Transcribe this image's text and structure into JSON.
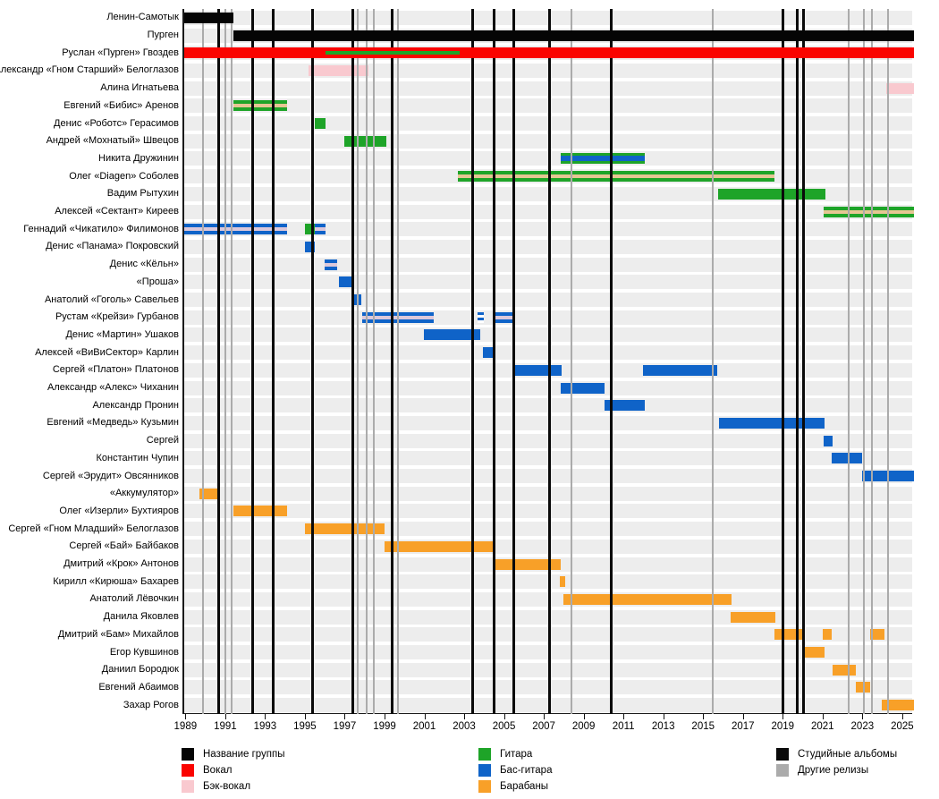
{
  "palette": {
    "band": "#050505",
    "vocals": "#fa0400",
    "backing": "#f9c9cf",
    "guitar": "#1ea428",
    "bass": "#0f63c8",
    "drums": "#f8a028",
    "stripe_tan": "#e6c693",
    "stripe_pink": "#dcc8da",
    "studio_line": "#0a0a0a",
    "other_line": "#ababab",
    "row_band": "#ededed"
  },
  "chart_data": {
    "type": "bar",
    "variant": "horizontal-timeline-gantt",
    "title": "",
    "xlim": [
      1988.85,
      2025.5
    ],
    "x_ticks": [
      1989,
      1991,
      1993,
      1995,
      1997,
      1999,
      2001,
      2003,
      2005,
      2007,
      2009,
      2011,
      2013,
      2015,
      2017,
      2019,
      2021,
      2023,
      2025
    ],
    "rows": [
      {
        "label": "Ленин-Самотык",
        "bars": [
          {
            "s": 1988.85,
            "e": 1991.3,
            "c": "band"
          }
        ]
      },
      {
        "label": "Пурген",
        "bars": [
          {
            "s": 1991.3,
            "e": 2025.5,
            "c": "band"
          }
        ]
      },
      {
        "label": "Руслан «Пурген» Гвоздев",
        "bars": [
          {
            "s": 1988.85,
            "e": 2025.5,
            "c": "vocals"
          },
          {
            "s": 1995.95,
            "e": 2002.7,
            "c": "guitar",
            "h": "thin"
          }
        ]
      },
      {
        "label": "Александр «Гном Старший» Белоглазов",
        "bars": [
          {
            "s": 1995.1,
            "e": 1998.1,
            "c": "backing"
          }
        ]
      },
      {
        "label": "Алина Игнатьева",
        "bars": [
          {
            "s": 2024.1,
            "e": 2025.5,
            "c": "backing"
          }
        ]
      },
      {
        "label": "Евгений «Бибис» Аренов",
        "bars": [
          {
            "s": 1991.3,
            "e": 1994.0,
            "c": "guitar"
          },
          {
            "s": 1991.3,
            "e": 1994.0,
            "c": "stripe_tan",
            "h": "thin"
          }
        ]
      },
      {
        "label": "Денис «Роботс» Герасимов",
        "bars": [
          {
            "s": 1995.4,
            "e": 1995.95,
            "c": "guitar"
          }
        ]
      },
      {
        "label": "Андрей «Мохнатый» Швецов",
        "bars": [
          {
            "s": 1996.9,
            "e": 1999.0,
            "c": "guitar"
          }
        ]
      },
      {
        "label": "Никита Дружинин",
        "bars": [
          {
            "s": 2007.75,
            "e": 2012.0,
            "c": "guitar"
          },
          {
            "s": 2007.75,
            "e": 2012.0,
            "c": "bass",
            "h": "mid"
          }
        ]
      },
      {
        "label": "Олег «Diagen» Соболев",
        "bars": [
          {
            "s": 2002.6,
            "e": 2018.5,
            "c": "guitar"
          },
          {
            "s": 2002.6,
            "e": 2018.5,
            "c": "stripe_tan",
            "h": "thin"
          }
        ]
      },
      {
        "label": "Вадим Рытухин",
        "bars": [
          {
            "s": 2015.65,
            "e": 2021.05,
            "c": "guitar"
          }
        ]
      },
      {
        "label": "Алексей «Сектант» Киреев",
        "bars": [
          {
            "s": 2020.95,
            "e": 2025.5,
            "c": "guitar"
          },
          {
            "s": 2020.95,
            "e": 2025.5,
            "c": "stripe_tan",
            "h": "thin"
          }
        ]
      },
      {
        "label": "Геннадий «Чикатило» Филимонов",
        "bars": [
          {
            "s": 1988.85,
            "e": 1994.0,
            "c": "bass"
          },
          {
            "s": 1988.85,
            "e": 1994.0,
            "c": "stripe_pink",
            "h": "thin"
          },
          {
            "s": 1994.9,
            "e": 1995.4,
            "c": "guitar"
          },
          {
            "s": 1995.4,
            "e": 1995.95,
            "c": "bass"
          },
          {
            "s": 1995.4,
            "e": 1995.95,
            "c": "stripe_pink",
            "h": "thin"
          }
        ]
      },
      {
        "label": "Денис «Панама» Покровский",
        "bars": [
          {
            "s": 1994.9,
            "e": 1995.4,
            "c": "bass"
          }
        ]
      },
      {
        "label": "Денис «Кёльн»",
        "bars": [
          {
            "s": 1995.9,
            "e": 1996.55,
            "c": "bass"
          },
          {
            "s": 1995.9,
            "e": 1996.55,
            "c": "stripe_pink",
            "h": "thin"
          }
        ]
      },
      {
        "label": "«Проша»",
        "bars": [
          {
            "s": 1996.6,
            "e": 1997.3,
            "c": "bass"
          }
        ]
      },
      {
        "label": "Анатолий «Гоголь» Савельев",
        "bars": [
          {
            "s": 1997.3,
            "e": 1997.75,
            "c": "bass"
          }
        ]
      },
      {
        "label": "Рустам «Крейзи» Гурбанов",
        "bars": [
          {
            "s": 1997.8,
            "e": 2001.4,
            "c": "bass"
          },
          {
            "s": 1997.8,
            "e": 2001.4,
            "c": "stripe_pink",
            "h": "thin"
          },
          {
            "s": 2003.6,
            "e": 2003.9,
            "c": "bass",
            "dotted": true
          },
          {
            "s": 2004.35,
            "e": 2005.4,
            "c": "bass"
          },
          {
            "s": 2004.35,
            "e": 2005.4,
            "c": "stripe_pink",
            "h": "thin"
          }
        ]
      },
      {
        "label": "Денис «Мартин» Ушаков",
        "bars": [
          {
            "s": 2000.9,
            "e": 2003.7,
            "c": "bass"
          }
        ]
      },
      {
        "label": "Алексей «ВиВиСектор» Карлин",
        "bars": [
          {
            "s": 2003.85,
            "e": 2004.4,
            "c": "bass"
          }
        ]
      },
      {
        "label": "Сергей «Платон» Платонов",
        "bars": [
          {
            "s": 2005.35,
            "e": 2007.8,
            "c": "bass"
          },
          {
            "s": 2011.9,
            "e": 2015.6,
            "c": "bass"
          }
        ]
      },
      {
        "label": "Александр «Алекс» Чиханин",
        "bars": [
          {
            "s": 2007.75,
            "e": 2009.95,
            "c": "bass"
          }
        ]
      },
      {
        "label": "Александр Пронин",
        "bars": [
          {
            "s": 2009.95,
            "e": 2012.0,
            "c": "bass"
          }
        ]
      },
      {
        "label": "Евгений «Медведь» Кузьмин",
        "bars": [
          {
            "s": 2015.7,
            "e": 2021.0,
            "c": "bass"
          }
        ]
      },
      {
        "label": "Сергей",
        "bars": [
          {
            "s": 2020.95,
            "e": 2021.4,
            "c": "bass"
          }
        ]
      },
      {
        "label": "Константин Чупин",
        "bars": [
          {
            "s": 2021.35,
            "e": 2022.9,
            "c": "bass"
          }
        ]
      },
      {
        "label": "Сергей «Эрудит» Овсянников",
        "bars": [
          {
            "s": 2022.9,
            "e": 2025.5,
            "c": "bass"
          }
        ]
      },
      {
        "label": "«Аккумулятор»",
        "bars": [
          {
            "s": 1989.6,
            "e": 1990.5,
            "c": "drums"
          }
        ]
      },
      {
        "label": "Олег «Изерли» Бухтияров",
        "bars": [
          {
            "s": 1991.3,
            "e": 1994.0,
            "c": "drums"
          }
        ]
      },
      {
        "label": "Сергей «Гном Младший» Белоглазов",
        "bars": [
          {
            "s": 1994.9,
            "e": 1998.9,
            "c": "drums"
          }
        ]
      },
      {
        "label": "Сергей «Бай» Байбаков",
        "bars": [
          {
            "s": 1998.9,
            "e": 2004.4,
            "c": "drums"
          }
        ]
      },
      {
        "label": "Дмитрий «Крок» Антонов",
        "bars": [
          {
            "s": 2004.35,
            "e": 2007.75,
            "c": "drums"
          }
        ]
      },
      {
        "label": "Кирилл «Кирюша» Бахарев",
        "bars": [
          {
            "s": 2007.7,
            "e": 2008.0,
            "c": "drums"
          }
        ]
      },
      {
        "label": "Анатолий Лёвочкин",
        "bars": [
          {
            "s": 2007.9,
            "e": 2016.35,
            "c": "drums"
          }
        ]
      },
      {
        "label": "Данила Яковлев",
        "bars": [
          {
            "s": 2016.3,
            "e": 2018.55,
            "c": "drums"
          }
        ]
      },
      {
        "label": "Дмитрий «Бам» Михайлов",
        "bars": [
          {
            "s": 2018.5,
            "e": 2020.0,
            "c": "drums"
          },
          {
            "s": 2020.9,
            "e": 2021.35,
            "c": "drums"
          },
          {
            "s": 2023.3,
            "e": 2024.0,
            "c": "drums"
          }
        ]
      },
      {
        "label": "Егор Кувшинов",
        "bars": [
          {
            "s": 2020.0,
            "e": 2021.0,
            "c": "drums"
          }
        ]
      },
      {
        "label": "Даниил Бородюк",
        "bars": [
          {
            "s": 2021.4,
            "e": 2022.6,
            "c": "drums"
          }
        ]
      },
      {
        "label": "Евгений Абаимов",
        "bars": [
          {
            "s": 2022.6,
            "e": 2023.3,
            "c": "drums"
          }
        ]
      },
      {
        "label": "Захар Рогов",
        "bars": [
          {
            "s": 2023.9,
            "e": 2025.5,
            "c": "drums"
          }
        ]
      }
    ],
    "release_lines": {
      "studio_albums": [
        1990.6,
        1992.3,
        1993.3,
        1995.3,
        1997.3,
        1999.3,
        2003.35,
        2004.4,
        2005.4,
        2007.2,
        2010.3,
        2018.9,
        2019.65,
        2019.95
      ],
      "other_releases": [
        1989.8,
        1990.9,
        1991.25,
        1997.55,
        1998.0,
        1998.35,
        1999.6,
        2008.3,
        2015.4,
        2022.2,
        2023.0,
        2023.4,
        2024.2
      ]
    },
    "legend": [
      {
        "items": [
          {
            "color": "band",
            "label": "Название группы"
          },
          {
            "color": "vocals",
            "label": "Вокал"
          },
          {
            "color": "backing",
            "label": "Бэк-вокал"
          }
        ]
      },
      {
        "items": [
          {
            "color": "guitar",
            "label": "Гитара"
          },
          {
            "color": "bass",
            "label": "Бас-гитара"
          },
          {
            "color": "drums",
            "label": "Барабаны"
          }
        ]
      },
      {
        "items": [
          {
            "color": "studio_line",
            "label": "Студийные альбомы"
          },
          {
            "color": "other_line",
            "label": "Другие релизы"
          }
        ]
      }
    ]
  }
}
